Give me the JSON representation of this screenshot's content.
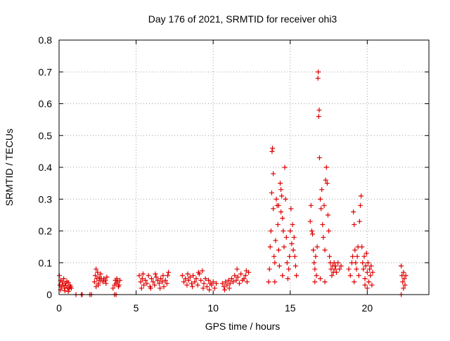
{
  "chart_data": {
    "type": "scatter",
    "title": "Day 176 of 2021, SRMTID for receiver ohi3",
    "xlabel": "GPS time / hours",
    "ylabel": "SRMTID / TECUs",
    "xlim": [
      0,
      24
    ],
    "ylim": [
      0,
      0.8
    ],
    "xticks": [
      0,
      5,
      10,
      15,
      20
    ],
    "yticks": [
      0,
      0.1,
      0.2,
      0.3,
      0.4,
      0.5,
      0.6,
      0.7,
      0.8
    ],
    "xtick_labels": [
      "0",
      "5",
      "10",
      "15",
      "20"
    ],
    "ytick_labels": [
      "0",
      "0.1",
      "0.2",
      "0.3",
      "0.4",
      "0.5",
      "0.6",
      "0.7",
      "0.8"
    ],
    "grid": true,
    "marker": "+",
    "series_color": "#e00000",
    "series": [
      {
        "name": "SRMTID",
        "points": [
          [
            0.02,
            0.06
          ],
          [
            0.05,
            0.03
          ],
          [
            0.1,
            0.045
          ],
          [
            0.15,
            0.025
          ],
          [
            0.2,
            0.04
          ],
          [
            0.25,
            0.03
          ],
          [
            0.3,
            0.05
          ],
          [
            0.35,
            0.02
          ],
          [
            0.4,
            0.035
          ],
          [
            0.45,
            0.028
          ],
          [
            0.5,
            0.042
          ],
          [
            0.55,
            0.022
          ],
          [
            0.6,
            0.038
          ],
          [
            0.65,
            0.018
          ],
          [
            0.7,
            0.03
          ],
          [
            0.75,
            0.025
          ],
          [
            0.8,
            0.02
          ],
          [
            0.38,
            0.012
          ],
          [
            0.1,
            0.015
          ],
          [
            0.6,
            0.01
          ],
          [
            1.1,
            0.0
          ],
          [
            1.45,
            0.0
          ],
          [
            1.5,
            0.0
          ],
          [
            2.0,
            0.0
          ],
          [
            2.1,
            0.0
          ],
          [
            3.6,
            0.0
          ],
          [
            3.7,
            0.0
          ],
          [
            2.3,
            0.04
          ],
          [
            2.35,
            0.06
          ],
          [
            2.4,
            0.08
          ],
          [
            2.45,
            0.05
          ],
          [
            2.5,
            0.07
          ],
          [
            2.55,
            0.03
          ],
          [
            2.6,
            0.055
          ],
          [
            2.65,
            0.045
          ],
          [
            2.7,
            0.065
          ],
          [
            2.4,
            0.025
          ],
          [
            2.55,
            0.035
          ],
          [
            2.75,
            0.05
          ],
          [
            2.85,
            0.04
          ],
          [
            2.9,
            0.05
          ],
          [
            3.0,
            0.045
          ],
          [
            3.05,
            0.035
          ],
          [
            3.1,
            0.055
          ],
          [
            3.5,
            0.02
          ],
          [
            3.6,
            0.03
          ],
          [
            3.65,
            0.045
          ],
          [
            3.7,
            0.035
          ],
          [
            3.75,
            0.05
          ],
          [
            3.8,
            0.04
          ],
          [
            3.85,
            0.025
          ],
          [
            3.9,
            0.03
          ],
          [
            3.95,
            0.045
          ],
          [
            5.2,
            0.06
          ],
          [
            5.3,
            0.04
          ],
          [
            5.4,
            0.05
          ],
          [
            5.5,
            0.03
          ],
          [
            5.6,
            0.045
          ],
          [
            5.7,
            0.035
          ],
          [
            5.8,
            0.06
          ],
          [
            5.9,
            0.025
          ],
          [
            6.0,
            0.05
          ],
          [
            6.1,
            0.04
          ],
          [
            6.2,
            0.03
          ],
          [
            6.3,
            0.055
          ],
          [
            6.4,
            0.045
          ],
          [
            6.5,
            0.035
          ],
          [
            6.6,
            0.05
          ],
          [
            6.7,
            0.04
          ],
          [
            6.8,
            0.025
          ],
          [
            6.9,
            0.045
          ],
          [
            7.0,
            0.035
          ],
          [
            7.05,
            0.06
          ],
          [
            7.1,
            0.07
          ],
          [
            5.45,
            0.065
          ],
          [
            5.95,
            0.02
          ],
          [
            6.55,
            0.02
          ],
          [
            6.25,
            0.065
          ],
          [
            6.75,
            0.06
          ],
          [
            5.35,
            0.02
          ],
          [
            8.0,
            0.06
          ],
          [
            8.1,
            0.04
          ],
          [
            8.2,
            0.05
          ],
          [
            8.3,
            0.03
          ],
          [
            8.4,
            0.045
          ],
          [
            8.5,
            0.055
          ],
          [
            8.6,
            0.035
          ],
          [
            8.7,
            0.06
          ],
          [
            8.8,
            0.04
          ],
          [
            8.9,
            0.05
          ],
          [
            9.0,
            0.03
          ],
          [
            9.1,
            0.065
          ],
          [
            9.2,
            0.045
          ],
          [
            9.3,
            0.075
          ],
          [
            9.4,
            0.035
          ],
          [
            9.5,
            0.05
          ],
          [
            9.6,
            0.025
          ],
          [
            9.7,
            0.045
          ],
          [
            9.8,
            0.035
          ],
          [
            9.9,
            0.03
          ],
          [
            10.0,
            0.04
          ],
          [
            10.1,
            0.02
          ],
          [
            10.2,
            0.035
          ],
          [
            8.65,
            0.025
          ],
          [
            9.05,
            0.07
          ],
          [
            9.35,
            0.02
          ],
          [
            8.35,
            0.065
          ],
          [
            9.75,
            0.015
          ],
          [
            10.6,
            0.035
          ],
          [
            10.7,
            0.025
          ],
          [
            10.8,
            0.04
          ],
          [
            10.9,
            0.03
          ],
          [
            11.0,
            0.045
          ],
          [
            11.1,
            0.035
          ],
          [
            11.2,
            0.05
          ],
          [
            11.3,
            0.04
          ],
          [
            11.4,
            0.06
          ],
          [
            11.5,
            0.045
          ],
          [
            11.6,
            0.055
          ],
          [
            11.7,
            0.035
          ],
          [
            11.8,
            0.065
          ],
          [
            11.9,
            0.045
          ],
          [
            12.0,
            0.05
          ],
          [
            12.1,
            0.06
          ],
          [
            12.2,
            0.04
          ],
          [
            12.3,
            0.07
          ],
          [
            11.55,
            0.08
          ],
          [
            11.05,
            0.02
          ],
          [
            12.15,
            0.075
          ],
          [
            10.75,
            0.015
          ],
          [
            13.6,
            0.04
          ],
          [
            13.65,
            0.08
          ],
          [
            13.7,
            0.15
          ],
          [
            13.75,
            0.2
          ],
          [
            13.8,
            0.32
          ],
          [
            13.82,
            0.45
          ],
          [
            13.85,
            0.46
          ],
          [
            13.9,
            0.27
          ],
          [
            13.95,
            0.12
          ],
          [
            14.0,
            0.1
          ],
          [
            14.05,
            0.17
          ],
          [
            14.1,
            0.3
          ],
          [
            14.15,
            0.28
          ],
          [
            14.2,
            0.22
          ],
          [
            14.25,
            0.14
          ],
          [
            14.3,
            0.09
          ],
          [
            14.35,
            0.35
          ],
          [
            14.4,
            0.33
          ],
          [
            14.45,
            0.31
          ],
          [
            14.5,
            0.24
          ],
          [
            14.55,
            0.2
          ],
          [
            14.6,
            0.15
          ],
          [
            14.65,
            0.4
          ],
          [
            14.7,
            0.3
          ],
          [
            14.75,
            0.18
          ],
          [
            14.8,
            0.1
          ],
          [
            14.85,
            0.05
          ],
          [
            14.9,
            0.08
          ],
          [
            14.95,
            0.12
          ],
          [
            15.0,
            0.2
          ],
          [
            15.05,
            0.27
          ],
          [
            15.1,
            0.16
          ],
          [
            15.15,
            0.22
          ],
          [
            15.2,
            0.14
          ],
          [
            15.25,
            0.18
          ],
          [
            15.3,
            0.12
          ],
          [
            15.35,
            0.09
          ],
          [
            15.4,
            0.06
          ],
          [
            14.0,
            0.04
          ],
          [
            14.5,
            0.06
          ],
          [
            14.25,
            0.28
          ],
          [
            13.9,
            0.38
          ],
          [
            14.4,
            0.26
          ],
          [
            16.3,
            0.23
          ],
          [
            16.35,
            0.28
          ],
          [
            16.4,
            0.2
          ],
          [
            16.45,
            0.19
          ],
          [
            16.5,
            0.14
          ],
          [
            16.55,
            0.1
          ],
          [
            16.6,
            0.08
          ],
          [
            16.65,
            0.12
          ],
          [
            16.7,
            0.06
          ],
          [
            16.75,
            0.15
          ],
          [
            16.8,
            0.68
          ],
          [
            16.82,
            0.7
          ],
          [
            16.85,
            0.56
          ],
          [
            16.88,
            0.58
          ],
          [
            16.9,
            0.43
          ],
          [
            16.95,
            0.3
          ],
          [
            17.0,
            0.27
          ],
          [
            17.05,
            0.33
          ],
          [
            17.1,
            0.22
          ],
          [
            17.15,
            0.18
          ],
          [
            17.2,
            0.28
          ],
          [
            17.25,
            0.14
          ],
          [
            17.3,
            0.36
          ],
          [
            17.35,
            0.4
          ],
          [
            17.4,
            0.35
          ],
          [
            17.45,
            0.25
          ],
          [
            17.5,
            0.2
          ],
          [
            17.55,
            0.12
          ],
          [
            17.6,
            0.1
          ],
          [
            17.65,
            0.08
          ],
          [
            17.7,
            0.06
          ],
          [
            17.75,
            0.09
          ],
          [
            17.8,
            0.07
          ],
          [
            17.85,
            0.1
          ],
          [
            17.9,
            0.08
          ],
          [
            17.95,
            0.09
          ],
          [
            18.0,
            0.07
          ],
          [
            18.1,
            0.1
          ],
          [
            18.2,
            0.08
          ],
          [
            18.3,
            0.09
          ],
          [
            16.6,
            0.04
          ],
          [
            16.95,
            0.05
          ],
          [
            17.25,
            0.04
          ],
          [
            18.8,
            0.08
          ],
          [
            18.9,
            0.06
          ],
          [
            19.0,
            0.1
          ],
          [
            19.05,
            0.12
          ],
          [
            19.1,
            0.26
          ],
          [
            19.15,
            0.22
          ],
          [
            19.2,
            0.14
          ],
          [
            19.25,
            0.1
          ],
          [
            19.3,
            0.08
          ],
          [
            19.35,
            0.12
          ],
          [
            19.4,
            0.15
          ],
          [
            19.45,
            0.06
          ],
          [
            19.5,
            0.23
          ],
          [
            19.55,
            0.28
          ],
          [
            19.6,
            0.31
          ],
          [
            19.65,
            0.15
          ],
          [
            19.7,
            0.1
          ],
          [
            19.75,
            0.08
          ],
          [
            19.8,
            0.12
          ],
          [
            19.85,
            0.05
          ],
          [
            19.9,
            0.09
          ],
          [
            19.95,
            0.13
          ],
          [
            20.0,
            0.07
          ],
          [
            20.05,
            0.1
          ],
          [
            20.1,
            0.04
          ],
          [
            20.15,
            0.08
          ],
          [
            20.2,
            0.06
          ],
          [
            20.25,
            0.09
          ],
          [
            20.3,
            0.03
          ],
          [
            20.35,
            0.07
          ],
          [
            19.15,
            0.04
          ],
          [
            19.85,
            0.03
          ],
          [
            20.0,
            0.02
          ],
          [
            22.2,
            0.09
          ],
          [
            22.25,
            0.06
          ],
          [
            22.3,
            0.04
          ],
          [
            22.35,
            0.07
          ],
          [
            22.4,
            0.05
          ],
          [
            22.45,
            0.03
          ],
          [
            22.5,
            0.06
          ],
          [
            22.35,
            0.02
          ],
          [
            22.2,
            0.0
          ]
        ]
      }
    ]
  }
}
